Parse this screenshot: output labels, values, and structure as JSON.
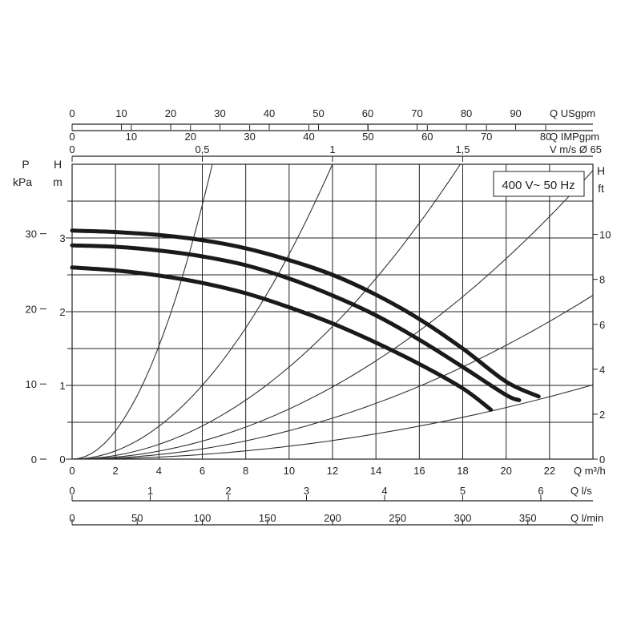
{
  "chart_data": {
    "type": "line",
    "legend": "400 V~ 50 Hz",
    "legend_position": "top-right",
    "grid": true,
    "xlabel": "Q m³/h",
    "xlim": [
      0,
      24
    ],
    "x_ticks": [
      "0",
      "2",
      "4",
      "6",
      "8",
      "10",
      "12",
      "14",
      "16",
      "18",
      "20",
      "22"
    ],
    "ylabel": "H m",
    "ylim": [
      0,
      4
    ],
    "y_ticks": [
      "0",
      "1",
      "2",
      "3"
    ],
    "secondary_axes": {
      "us_gpm": {
        "label": "Q USgpm",
        "ticks": [
          "0",
          "10",
          "20",
          "30",
          "40",
          "50",
          "60",
          "70",
          "80",
          "90"
        ]
      },
      "imp_gpm": {
        "label": "Q IMPgpm",
        "ticks": [
          "0",
          "10",
          "20",
          "30",
          "40",
          "50",
          "60",
          "70",
          "80"
        ]
      },
      "velocity": {
        "label": "V m/s Ø 65",
        "ticks": [
          "0",
          "0,5",
          "1",
          "1,5"
        ]
      },
      "pressure": {
        "label": "P",
        "unit": "kPa",
        "ticks": [
          "0",
          "10",
          "20",
          "30"
        ]
      },
      "head_ft": {
        "label": "H",
        "unit": "ft",
        "ticks": [
          "0",
          "2",
          "4",
          "6",
          "8",
          "10"
        ]
      },
      "l_s": {
        "label": "Q l/s",
        "ticks": [
          "0",
          "1",
          "2",
          "3",
          "4",
          "5",
          "6"
        ]
      },
      "l_min": {
        "label": "Q l/min",
        "ticks": [
          "0",
          "50",
          "100",
          "150",
          "200",
          "250",
          "300",
          "350"
        ]
      }
    },
    "series": [
      {
        "x": [
          0,
          2,
          4,
          6,
          8,
          10,
          12,
          14,
          16,
          18,
          20,
          21.5
        ],
        "y": [
          3.1,
          3.08,
          3.04,
          2.97,
          2.86,
          2.7,
          2.5,
          2.23,
          1.9,
          1.5,
          1.05,
          0.85
        ]
      },
      {
        "x": [
          0,
          2,
          4,
          6,
          8,
          10,
          12,
          14,
          16,
          18,
          20,
          20.6
        ],
        "y": [
          2.9,
          2.88,
          2.83,
          2.75,
          2.63,
          2.45,
          2.22,
          1.95,
          1.62,
          1.25,
          0.87,
          0.8
        ]
      },
      {
        "x": [
          0,
          2,
          4,
          6,
          8,
          10,
          12,
          14,
          16,
          18,
          19.3
        ],
        "y": [
          2.6,
          2.56,
          2.49,
          2.39,
          2.25,
          2.06,
          1.84,
          1.58,
          1.29,
          0.96,
          0.67
        ]
      }
    ],
    "system_curves": [
      {
        "k": 0.0958
      },
      {
        "k": 0.0278
      },
      {
        "k": 0.0125
      },
      {
        "k": 0.0068
      },
      {
        "k": 0.00386
      },
      {
        "k": 0.00175
      }
    ]
  }
}
